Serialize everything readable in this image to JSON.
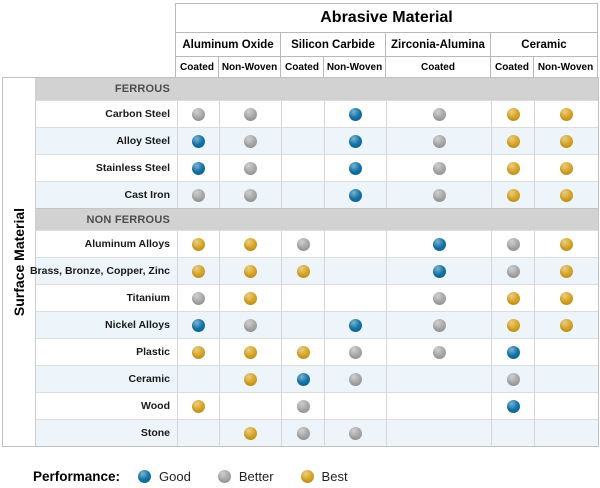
{
  "left_axis_label": "Surface Material",
  "legend": {
    "label": "Performance:",
    "items": [
      {
        "rating": "good",
        "label": "Good"
      },
      {
        "rating": "better",
        "label": "Better"
      },
      {
        "rating": "best",
        "label": "Best"
      }
    ]
  },
  "colors": {
    "good": "#1273a7",
    "better": "#a8a8a8",
    "best": "#d7a424",
    "stripe": "#edf4fa",
    "band_bg": "#d2d2d2",
    "band_text": "#4d4d4d"
  },
  "chart_data": {
    "type": "table",
    "title": "Abrasive Material",
    "row_axis_label": "Surface Material",
    "column_groups": [
      {
        "label": "Aluminum Oxide",
        "subs": [
          "Coated",
          "Non-Woven"
        ]
      },
      {
        "label": "Silicon Carbide",
        "subs": [
          "Coated",
          "Non-Woven"
        ]
      },
      {
        "label": "Zirconia-Alumina",
        "subs": [
          "Coated"
        ]
      },
      {
        "label": "Ceramic",
        "subs": [
          "Coated",
          "Non-Woven"
        ]
      }
    ],
    "rating_scale": [
      "Good",
      "Better",
      "Best"
    ],
    "sections": [
      {
        "name": "FERROUS",
        "rows": [
          {
            "label": "Carbon Steel",
            "cells": [
              "better",
              "better",
              null,
              "good",
              "better",
              "best",
              "best"
            ]
          },
          {
            "label": "Alloy Steel",
            "cells": [
              "good",
              "better",
              null,
              "good",
              "better",
              "best",
              "best"
            ]
          },
          {
            "label": "Stainless Steel",
            "cells": [
              "good",
              "better",
              null,
              "good",
              "better",
              "best",
              "best"
            ]
          },
          {
            "label": "Cast Iron",
            "cells": [
              "better",
              "better",
              null,
              "good",
              "better",
              "best",
              "best"
            ]
          }
        ]
      },
      {
        "name": "NON FERROUS",
        "rows": [
          {
            "label": "Aluminum Alloys",
            "cells": [
              "best",
              "best",
              "better",
              null,
              "good",
              "better",
              "best"
            ]
          },
          {
            "label": "Brass, Bronze, Copper, Zinc",
            "cells": [
              "best",
              "best",
              "best",
              null,
              "good",
              "better",
              "best"
            ]
          },
          {
            "label": "Titanium",
            "cells": [
              "better",
              "best",
              null,
              null,
              "better",
              "best",
              "best"
            ]
          },
          {
            "label": "Nickel Alloys",
            "cells": [
              "good",
              "better",
              null,
              "good",
              "better",
              "best",
              "best"
            ]
          },
          {
            "label": "Plastic",
            "cells": [
              "best",
              "best",
              "best",
              "better",
              "better",
              "good",
              null
            ]
          },
          {
            "label": "Ceramic",
            "cells": [
              null,
              "best",
              "good",
              "better",
              null,
              "better",
              null
            ]
          },
          {
            "label": "Wood",
            "cells": [
              "best",
              null,
              "better",
              null,
              null,
              "good",
              null
            ]
          },
          {
            "label": "Stone",
            "cells": [
              null,
              "best",
              "better",
              "better",
              null,
              null,
              null
            ]
          }
        ]
      }
    ]
  }
}
